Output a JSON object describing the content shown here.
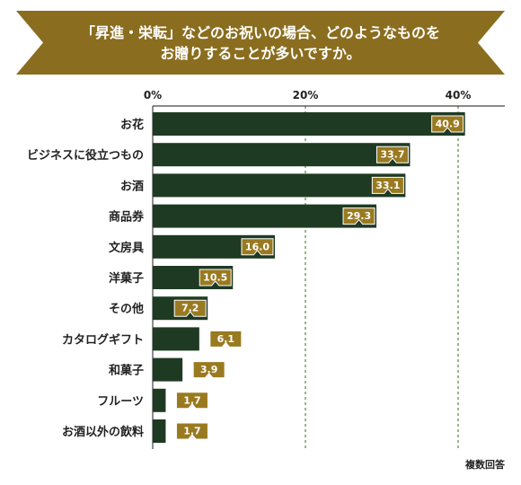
{
  "banner": {
    "line1": "「昇進・栄転」などのお祝いの場合、どのようなものを",
    "line2": "お贈りすることが多いですか。"
  },
  "colors": {
    "banner": "#8a6d1f",
    "bar": "#1f3a23",
    "label_tag": "#9a7a20",
    "grid": "#4f8a3a"
  },
  "chart_data": {
    "type": "bar",
    "orientation": "horizontal",
    "categories": [
      "お花",
      "ビジネスに役立つもの",
      "お酒",
      "商品券",
      "文房具",
      "洋菓子",
      "その他",
      "カタログギフト",
      "和菓子",
      "フルーツ",
      "お酒以外の飲料"
    ],
    "values": [
      40.9,
      33.7,
      33.1,
      29.3,
      16.0,
      10.5,
      7.2,
      6.1,
      3.9,
      1.7,
      1.7
    ],
    "value_labels": [
      "40.9",
      "33.7",
      "33.1",
      "29.3",
      "16.0",
      "10.5",
      "7.2",
      "6.1",
      "3.9",
      "1.7",
      "1.7"
    ],
    "ticks": [
      "0%",
      "20%",
      "40%"
    ],
    "tick_values": [
      0,
      20,
      40
    ],
    "xlim": [
      0,
      43.5
    ],
    "grid": true,
    "note": "複数回答"
  }
}
